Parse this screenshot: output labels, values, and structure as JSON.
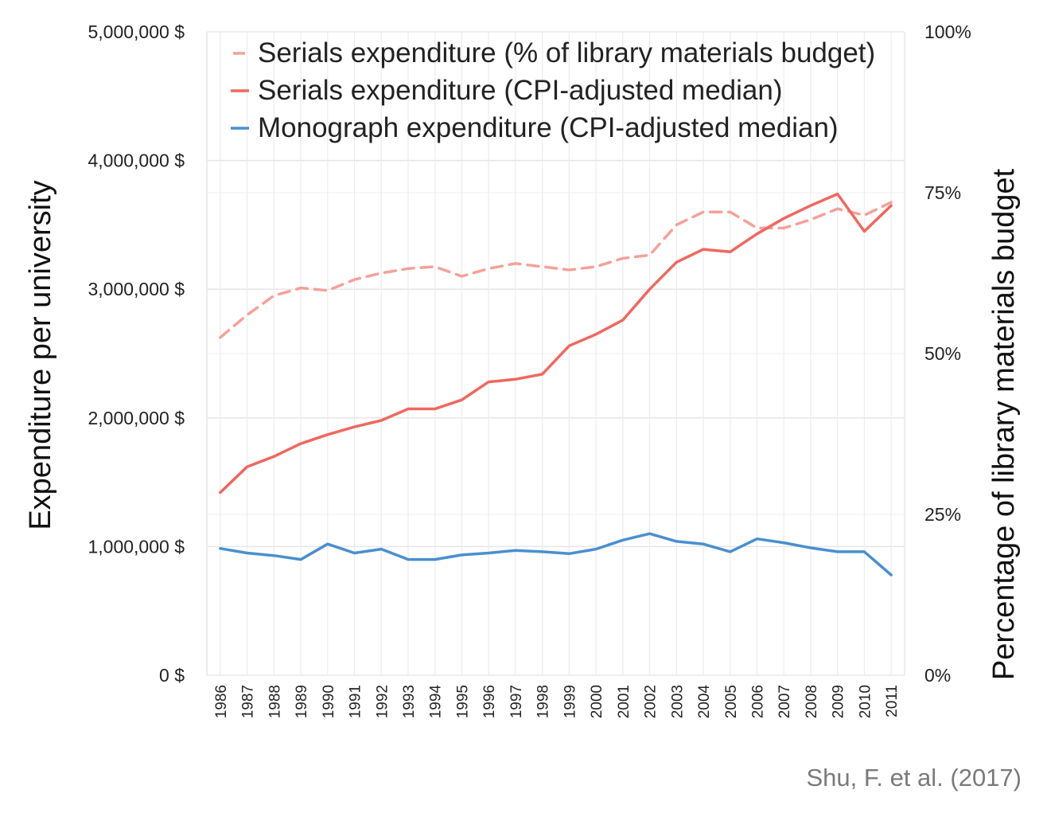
{
  "chart_data": {
    "type": "line",
    "x": [
      "1986",
      "1987",
      "1988",
      "1989",
      "1990",
      "1991",
      "1992",
      "1993",
      "1994",
      "1995",
      "1996",
      "1997",
      "1998",
      "1999",
      "2000",
      "2001",
      "2002",
      "2003",
      "2004",
      "2005",
      "2006",
      "2007",
      "2008",
      "2009",
      "2010",
      "2011"
    ],
    "left_axis": {
      "label": "Expenditure per university",
      "ylim": [
        0,
        5000000
      ],
      "ticks": [
        0,
        1000000,
        2000000,
        3000000,
        4000000,
        5000000
      ],
      "tick_labels": [
        "0 $",
        "1,000,000 $",
        "2,000,000 $",
        "3,000,000 $",
        "4,000,000 $",
        "5,000,000 $"
      ]
    },
    "right_axis": {
      "label": "Percentage of library materials budget",
      "ylim": [
        0,
        100
      ],
      "ticks": [
        0,
        25,
        50,
        75,
        100
      ],
      "tick_labels": [
        "0%",
        "25%",
        "50%",
        "75%",
        "100%"
      ]
    },
    "series": [
      {
        "name": "Serials expenditure (% of library materials budget)",
        "axis": "right",
        "style": "dashed",
        "color": "#f4a19a",
        "values": [
          52.5,
          56,
          59,
          60.2,
          59.8,
          61.5,
          62.5,
          63.2,
          63.5,
          62,
          63.2,
          64,
          63.5,
          63,
          63.5,
          64.8,
          65.3,
          70,
          72,
          72,
          69.5,
          69.5,
          70.8,
          72.5,
          71.5,
          73.5
        ]
      },
      {
        "name": "Serials expenditure (CPI-adjusted median)",
        "axis": "left",
        "style": "solid",
        "color": "#f0675f",
        "values": [
          1420000,
          1620000,
          1700000,
          1800000,
          1870000,
          1930000,
          1980000,
          2070000,
          2070000,
          2140000,
          2280000,
          2300000,
          2340000,
          2560000,
          2650000,
          2760000,
          3000000,
          3210000,
          3310000,
          3290000,
          3430000,
          3550000,
          3650000,
          3740000,
          3450000,
          3650000
        ]
      },
      {
        "name": "Monograph expenditure (CPI-adjusted median)",
        "axis": "left",
        "style": "solid",
        "color": "#4a8fd0",
        "values": [
          985000,
          950000,
          930000,
          900000,
          1020000,
          950000,
          980000,
          900000,
          900000,
          935000,
          950000,
          970000,
          960000,
          945000,
          980000,
          1050000,
          1100000,
          1040000,
          1020000,
          960000,
          1060000,
          1030000,
          990000,
          960000,
          960000,
          780000
        ]
      }
    ],
    "grid": true,
    "legend_position": "top-left"
  },
  "source": "Shu, F. et al. (2017)"
}
